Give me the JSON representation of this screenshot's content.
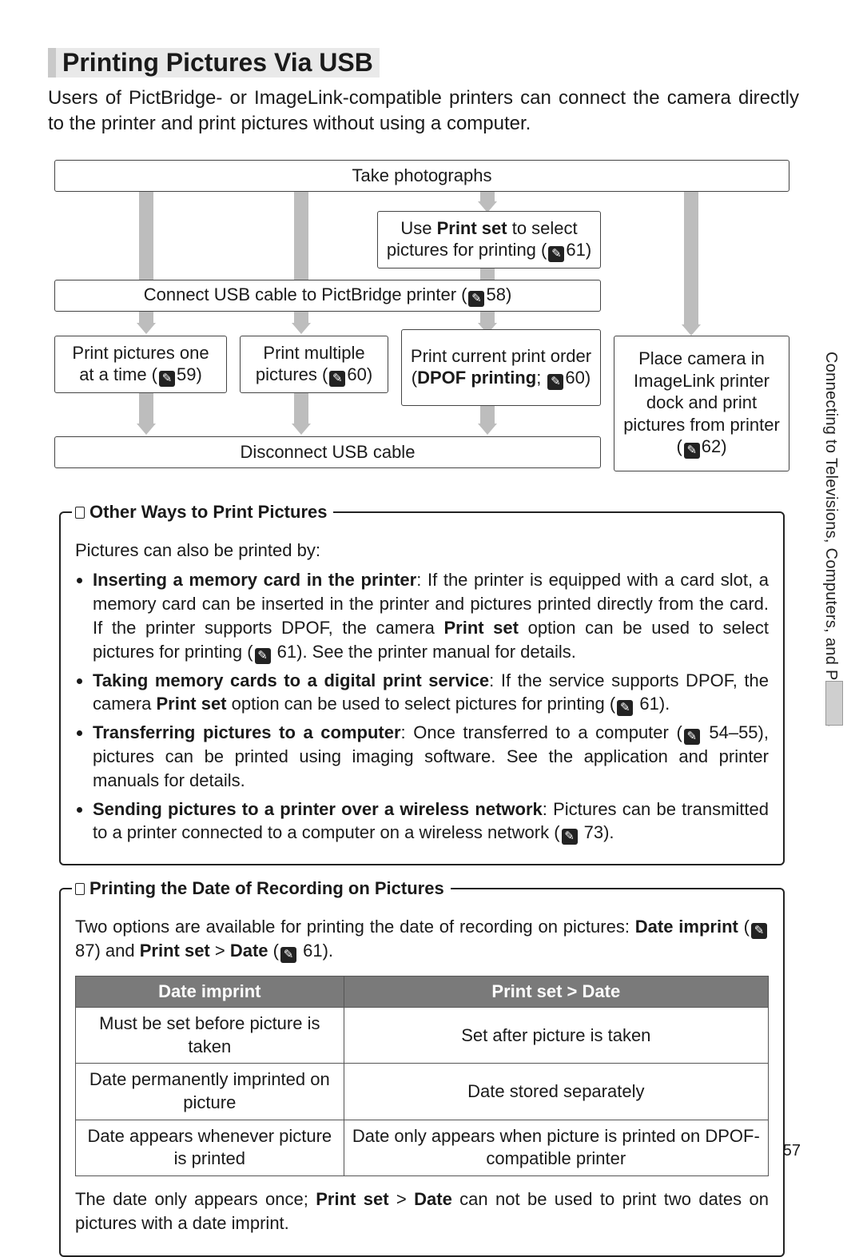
{
  "page_number": "57",
  "side_text": "Connecting to Televisions, Computers, and Printers",
  "title": "Printing Pictures Via USB",
  "intro": "Users of PictBridge- or ImageLink-compatible printers can connect the camera directly to the printer and print pictures without using a computer.",
  "flow": {
    "take": "Take photographs",
    "printset_pre": "Use ",
    "printset_bold": "Print set",
    "printset_post": " to select pictures for printing (",
    "printset_ref": "61)",
    "connect": "Connect USB cable to PictBridge printer (",
    "connect_ref": "58)",
    "one_a": "Print pictures one",
    "one_b": "at a time (",
    "one_ref": "59)",
    "multi_a": "Print multiple",
    "multi_b": "pictures (",
    "multi_ref": "60)",
    "dpof_a": "Print current print order (",
    "dpof_bold": "DPOF printing",
    "dpof_b": "; ",
    "dpof_ref": "60)",
    "imagelink_a": "Place camera in ImageLink printer dock and print pictures from printer",
    "imagelink_b": "(",
    "imagelink_ref": "62)",
    "disconnect": "Disconnect USB cable"
  },
  "box1": {
    "title": "Other Ways to Print Pictures",
    "lead": "Pictures can also be printed by:",
    "items": [
      {
        "bold": "Inserting a memory card in the printer",
        "text": ": If the printer is equipped with a card slot, a memory card can be inserted in the printer and pictures printed directly from the card.  If the printer supports DPOF, the camera ",
        "bold2": "Print set",
        "text2": " option can be used to select pictures for printing (",
        "ref": "61).  See the printer manual for details."
      },
      {
        "bold": "Taking memory cards to a digital print service",
        "text": ": If the service supports DPOF, the camera ",
        "bold2": "Print set",
        "text2": " option can be used to select pictures for printing (",
        "ref": "61)."
      },
      {
        "bold": "Transferring pictures to a computer",
        "text": ": Once transferred to a computer (",
        "ref": "54–55), pictures can be printed using imaging software.  See the application and printer manuals for details."
      },
      {
        "bold": "Sending pictures to a printer over a wireless network",
        "text": ": Pictures can be transmitted to a printer connected to a computer on a wireless network (",
        "ref": "73)."
      }
    ]
  },
  "box2": {
    "title": "Printing the Date of Recording on Pictures",
    "lead_a": "Two options are available for printing the date of recording on pictures: ",
    "lead_b1": "Date imprint",
    "lead_b2": " (",
    "lead_ref1": "87) and ",
    "lead_b3": "Print set",
    "lead_gt": " > ",
    "lead_b4": "Date",
    "lead_b5": " (",
    "lead_ref2": "61).",
    "table": {
      "headers": [
        "Date imprint",
        "Print set > Date"
      ],
      "rows": [
        [
          "Must be set before picture is taken",
          "Set after picture is taken"
        ],
        [
          "Date permanently imprinted on picture",
          "Date stored separately"
        ],
        [
          "Date appears whenever picture is printed",
          "Date only appears when picture is printed on DPOF-compatible printer"
        ]
      ]
    },
    "tail_a": "The date only appears once; ",
    "tail_b1": "Print set",
    "tail_gt": " > ",
    "tail_b2": "Date",
    "tail_c": " can not be used to print two dates on pictures with a date imprint."
  }
}
